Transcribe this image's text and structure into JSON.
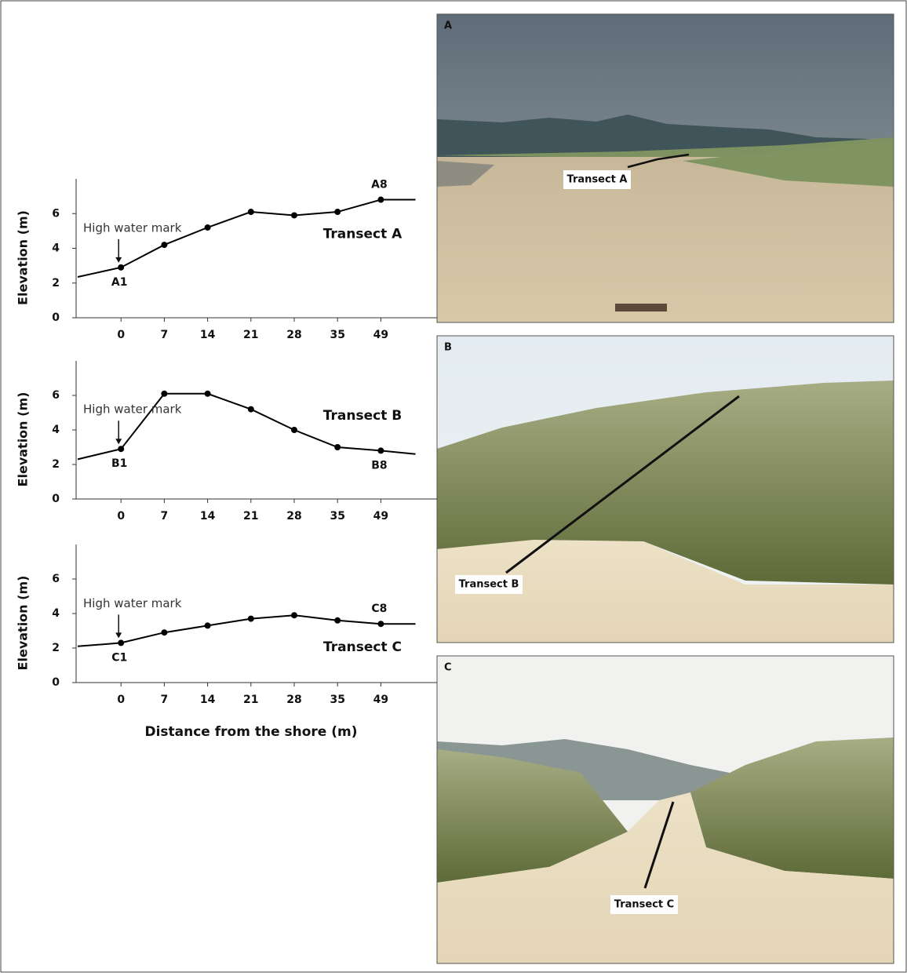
{
  "chart_data": [
    {
      "type": "line",
      "y_label": "Elevation (m)",
      "annotation": "High water mark",
      "categories": [
        null,
        "0",
        "7",
        "14",
        "21",
        "28",
        "35",
        "49",
        null
      ],
      "point_labels": [
        null,
        "A1",
        null,
        null,
        null,
        null,
        null,
        "A8",
        null
      ],
      "series": [
        {
          "name": "Transect A",
          "color": "#000000",
          "values": [
            2.35,
            2.9,
            4.2,
            5.2,
            6.1,
            5.9,
            6.1,
            6.8,
            6.8
          ]
        }
      ],
      "ylim": [
        0,
        8
      ],
      "yticks": [
        0,
        2,
        4,
        6
      ]
    },
    {
      "type": "line",
      "y_label": "Elevation (m)",
      "annotation": "High water mark",
      "categories": [
        null,
        "0",
        "7",
        "14",
        "21",
        "28",
        "35",
        "49",
        null
      ],
      "point_labels": [
        null,
        "B1",
        null,
        null,
        null,
        null,
        null,
        "B8",
        null
      ],
      "series": [
        {
          "name": "Transect B",
          "color": "#000000",
          "values": [
            2.3,
            2.9,
            6.1,
            6.1,
            5.2,
            4.0,
            3.0,
            2.8,
            2.6
          ]
        }
      ],
      "ylim": [
        0,
        8
      ],
      "yticks": [
        0,
        2,
        4,
        6
      ]
    },
    {
      "type": "line",
      "y_label": "Elevation (m)",
      "annotation": "High water mark",
      "x_label": "Distance from the shore (m)",
      "categories": [
        null,
        "0",
        "7",
        "14",
        "21",
        "28",
        "35",
        "49",
        null
      ],
      "point_labels": [
        null,
        "C1",
        null,
        null,
        null,
        null,
        null,
        "C8",
        null
      ],
      "series": [
        {
          "name": "Transect C",
          "color": "#000000",
          "values": [
            2.1,
            2.3,
            2.9,
            3.3,
            3.7,
            3.9,
            3.6,
            3.4,
            3.4
          ]
        }
      ],
      "ylim": [
        0,
        8
      ],
      "yticks": [
        0,
        2,
        4,
        6
      ]
    }
  ],
  "photos": [
    {
      "label": "A",
      "caption": "Transect A"
    },
    {
      "label": "B",
      "caption": "Transect B"
    },
    {
      "label": "C",
      "caption": "Transect C"
    }
  ]
}
